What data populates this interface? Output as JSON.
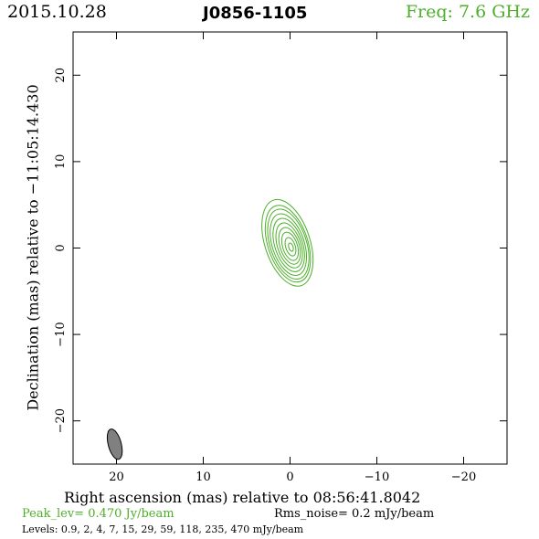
{
  "header": {
    "date": "2015.10.28",
    "source": "J0856-1105",
    "frequency": "Freq: 7.6 GHz"
  },
  "colors": {
    "contour": "#4daf2a",
    "beam": "#808080",
    "axis": "#000000"
  },
  "footer": {
    "peak": "Peak_lev=  0.470 Jy/beam",
    "rms": "Rms_noise=  0.2 mJy/beam",
    "levels": "Levels: 0.9,   2,   4,   7,   15,   29,   59,  118,  235,  470  mJy/beam"
  },
  "chart_data": {
    "type": "contour",
    "title": "J0856-1105",
    "xlabel": "Right ascension (mas) relative to 08:56:41.8042",
    "ylabel": "Declination (mas) relative to −11:05:14.430",
    "xlim": [
      25,
      -25
    ],
    "ylim": [
      -25,
      25
    ],
    "x_ticks": [
      20,
      10,
      0,
      -10,
      -20
    ],
    "x_tick_labels": [
      "20",
      "10",
      "0",
      "−10",
      "−20"
    ],
    "y_ticks": [
      -20,
      -10,
      0,
      10,
      20
    ],
    "y_tick_labels": [
      "−20",
      "−10",
      "0",
      "10",
      "20"
    ],
    "x_scale": "linear",
    "y_scale": "linear",
    "grid": false,
    "peak_jy_per_beam": 0.47,
    "rms_mjy_per_beam": 0.2,
    "contour_levels_mjy": [
      0.9,
      2,
      4,
      7,
      15,
      29,
      59,
      118,
      235,
      470
    ],
    "source_center": [
      0.2,
      0.4
    ],
    "contours": [
      {
        "level": 0.9,
        "cx": 0.3,
        "cy": 0.6,
        "sx": 2.6,
        "sy": 5.2,
        "angle_deg": 18
      },
      {
        "level": 2,
        "cx": 0.25,
        "cy": 0.5,
        "sx": 2.3,
        "sy": 4.6,
        "angle_deg": 18
      },
      {
        "level": 4,
        "cx": 0.2,
        "cy": 0.45,
        "sx": 2.1,
        "sy": 4.2,
        "angle_deg": 18
      },
      {
        "level": 7,
        "cx": 0.2,
        "cy": 0.4,
        "sx": 1.85,
        "sy": 3.7,
        "angle_deg": 18
      },
      {
        "level": 15,
        "cx": 0.15,
        "cy": 0.35,
        "sx": 1.6,
        "sy": 3.2,
        "angle_deg": 18
      },
      {
        "level": 29,
        "cx": 0.1,
        "cy": 0.3,
        "sx": 1.35,
        "sy": 2.7,
        "angle_deg": 18
      },
      {
        "level": 59,
        "cx": 0.05,
        "cy": 0.25,
        "sx": 1.1,
        "sy": 2.2,
        "angle_deg": 18
      },
      {
        "level": 118,
        "cx": 0.0,
        "cy": 0.2,
        "sx": 0.85,
        "sy": 1.7,
        "angle_deg": 18
      },
      {
        "level": 235,
        "cx": -0.05,
        "cy": 0.15,
        "sx": 0.55,
        "sy": 1.1,
        "angle_deg": 18
      },
      {
        "level": 470,
        "cx": -0.1,
        "cy": 0.1,
        "sx": 0.25,
        "sy": 0.5,
        "angle_deg": 18
      }
    ],
    "beam": {
      "cx": 20.2,
      "cy": -22.7,
      "major_mas": 3.6,
      "minor_mas": 1.5,
      "pa_deg": 15
    }
  }
}
